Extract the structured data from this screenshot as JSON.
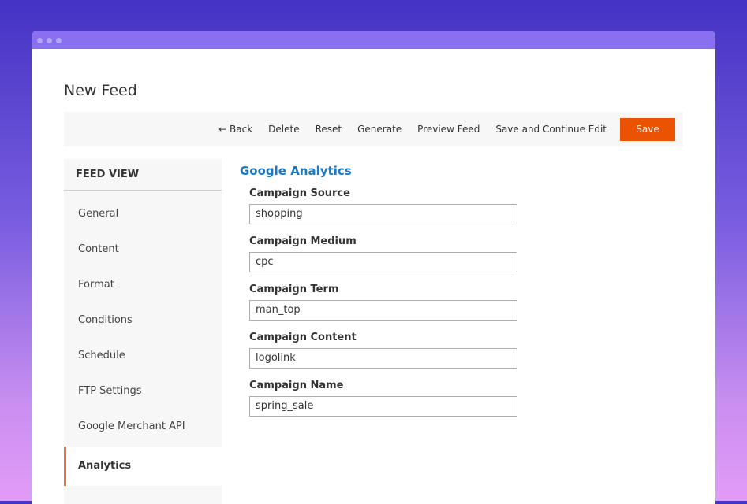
{
  "page": {
    "title": "New Feed"
  },
  "toolbar": {
    "back": "← Back",
    "delete": "Delete",
    "reset": "Reset",
    "generate": "Generate",
    "preview": "Preview Feed",
    "save_continue": "Save and Continue Edit",
    "save": "Save"
  },
  "sidebar": {
    "heading": "FEED VIEW",
    "items": [
      {
        "label": "General"
      },
      {
        "label": "Content"
      },
      {
        "label": "Format"
      },
      {
        "label": "Conditions"
      },
      {
        "label": "Schedule"
      },
      {
        "label": "FTP Settings"
      },
      {
        "label": "Google Merchant API"
      },
      {
        "label": "Analytics",
        "active": true
      }
    ]
  },
  "main": {
    "section_title": "Google Analytics",
    "fields": [
      {
        "label": "Campaign Source",
        "value": "shopping"
      },
      {
        "label": "Campaign Medium",
        "value": "cpc"
      },
      {
        "label": "Campaign Term",
        "value": "man_top"
      },
      {
        "label": "Campaign Content",
        "value": "logolink"
      },
      {
        "label": "Campaign Name",
        "value": "spring_sale"
      }
    ]
  },
  "colors": {
    "accent": "#eb5202",
    "link": "#1979c3",
    "active_marker": "#e4744a"
  }
}
